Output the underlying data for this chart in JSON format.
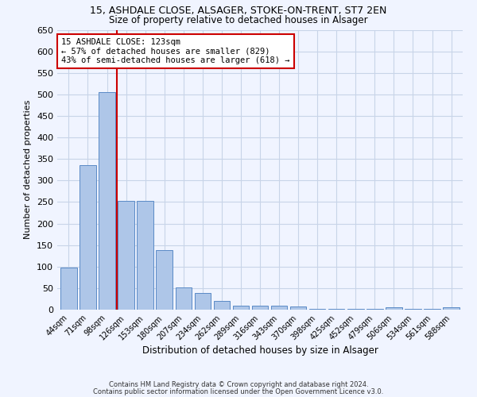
{
  "title1": "15, ASHDALE CLOSE, ALSAGER, STOKE-ON-TRENT, ST7 2EN",
  "title2": "Size of property relative to detached houses in Alsager",
  "xlabel": "Distribution of detached houses by size in Alsager",
  "ylabel": "Number of detached properties",
  "bin_labels": [
    "44sqm",
    "71sqm",
    "98sqm",
    "126sqm",
    "153sqm",
    "180sqm",
    "207sqm",
    "234sqm",
    "262sqm",
    "289sqm",
    "316sqm",
    "343sqm",
    "370sqm",
    "398sqm",
    "425sqm",
    "452sqm",
    "479sqm",
    "506sqm",
    "534sqm",
    "561sqm",
    "588sqm"
  ],
  "bar_heights": [
    97,
    335,
    505,
    253,
    253,
    138,
    52,
    38,
    21,
    10,
    10,
    9,
    7,
    1,
    1,
    1,
    1,
    5,
    1,
    1,
    5
  ],
  "bar_color": "#aec6e8",
  "bar_edge_color": "#5a8ac6",
  "vline_color": "#cc0000",
  "ylim": [
    0,
    650
  ],
  "yticks": [
    0,
    50,
    100,
    150,
    200,
    250,
    300,
    350,
    400,
    450,
    500,
    550,
    600,
    650
  ],
  "annotation_line1": "15 ASHDALE CLOSE: 123sqm",
  "annotation_line2": "← 57% of detached houses are smaller (829)",
  "annotation_line3": "43% of semi-detached houses are larger (618) →",
  "annotation_box_color": "#ffffff",
  "annotation_box_edge_color": "#cc0000",
  "footer1": "Contains HM Land Registry data © Crown copyright and database right 2024.",
  "footer2": "Contains public sector information licensed under the Open Government Licence v3.0.",
  "bg_color": "#f0f4ff",
  "grid_color": "#c8d4e8"
}
